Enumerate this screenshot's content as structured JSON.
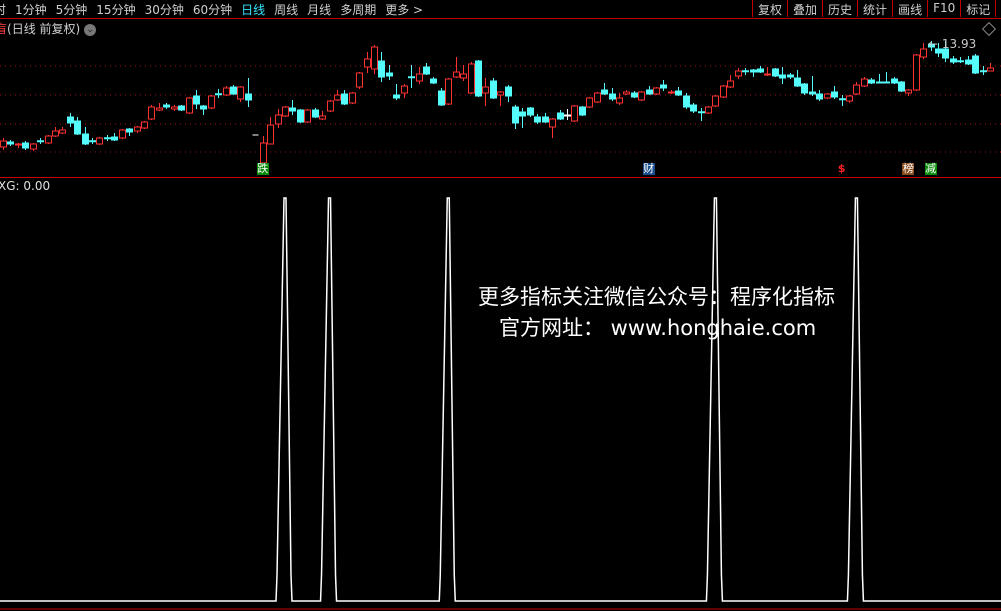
{
  "toolbar": {
    "cut_item": "时",
    "periods": [
      "1分钟",
      "5分钟",
      "15分钟",
      "30分钟",
      "60分钟",
      "日线",
      "周线",
      "月线",
      "多周期",
      "更多 >"
    ],
    "active_period": "日线",
    "right_buttons": [
      "复权",
      "叠加",
      "历史",
      "统计",
      "画线",
      "F10",
      "标记",
      "·"
    ]
  },
  "subtitle": {
    "cut_char": "盲",
    "text": "(日线 前复权)",
    "icon": "chevron-down-circle-icon"
  },
  "main_chart": {
    "high_label": "13.93",
    "high_arrow": "←",
    "markers": [
      {
        "text": "跌",
        "color": "#0a8a0a"
      },
      {
        "text": "财",
        "color": "#1b4d8c"
      },
      {
        "text": "$",
        "color": "#ff2020"
      },
      {
        "text": "榜",
        "color": "#8a4a1a"
      },
      {
        "text": "减",
        "color": "#0a8a0a"
      }
    ]
  },
  "indicator": {
    "label": "XG: 0.00"
  },
  "watermark": {
    "line1": "更多指标关注微信公众号：程序化指标",
    "line2": "官方网址： www.honghaie.com"
  },
  "colors": {
    "up": "#ff3232",
    "down": "#54fcfc",
    "flat": "#ffffff",
    "grid": "#a01010",
    "accent": "#35e6ff",
    "line": "#ffffff"
  },
  "chart_data": [
    {
      "type": "candlestick",
      "fields": [
        "open",
        "close",
        "high",
        "low"
      ],
      "candles": [
        [
          9.69,
          9.93,
          10.05,
          9.57
        ],
        [
          9.89,
          9.81,
          9.97,
          9.73
        ],
        [
          9.77,
          9.81,
          9.85,
          9.65
        ],
        [
          9.85,
          9.65,
          9.93,
          9.57
        ],
        [
          9.61,
          9.81,
          9.85,
          9.53
        ],
        [
          9.94,
          9.93,
          10.05,
          9.81
        ],
        [
          9.85,
          10.13,
          10.17,
          9.81
        ],
        [
          10.13,
          10.33,
          10.49,
          10.09
        ],
        [
          10.25,
          10.37,
          10.49,
          10.21
        ],
        [
          10.89,
          10.65,
          11.05,
          10.49
        ],
        [
          10.73,
          10.21,
          10.89,
          10.17
        ],
        [
          10.21,
          9.81,
          10.49,
          9.77
        ],
        [
          9.94,
          9.93,
          10.05,
          9.81
        ],
        [
          9.81,
          10.05,
          10.09,
          9.77
        ],
        [
          10.06,
          10.05,
          10.17,
          9.93
        ],
        [
          10.09,
          9.97,
          10.25,
          9.93
        ],
        [
          10.05,
          10.37,
          10.41,
          10.01
        ],
        [
          10.41,
          10.29,
          10.45,
          10.13
        ],
        [
          10.33,
          10.49,
          10.53,
          10.25
        ],
        [
          10.45,
          10.69,
          10.73,
          10.41
        ],
        [
          10.81,
          11.29,
          11.37,
          10.77
        ],
        [
          11.17,
          11.25,
          11.45,
          11.13
        ],
        [
          11.37,
          11.29,
          11.45,
          11.21
        ],
        [
          11.21,
          11.29,
          11.37,
          11.13
        ],
        [
          11.33,
          11.17,
          11.37,
          11.13
        ],
        [
          11.05,
          11.65,
          11.69,
          11.01
        ],
        [
          11.73,
          11.41,
          11.97,
          11.21
        ],
        [
          11.33,
          11.21,
          11.37,
          10.97
        ],
        [
          11.25,
          11.73,
          11.77,
          11.21
        ],
        [
          11.82,
          11.81,
          12.01,
          11.65
        ],
        [
          11.77,
          12.05,
          12.13,
          11.73
        ],
        [
          12.09,
          11.81,
          12.17,
          11.77
        ],
        [
          11.61,
          12.09,
          12.13,
          11.49
        ],
        [
          11.81,
          11.57,
          12.45,
          11.29
        ],
        [
          10.17,
          10.17,
          10.17,
          10.17
        ],
        [
          9.05,
          9.85,
          10.13,
          9.05
        ],
        [
          9.81,
          10.57,
          10.89,
          9.81
        ],
        [
          10.61,
          10.97,
          11.21,
          10.45
        ],
        [
          10.93,
          11.29,
          11.33,
          10.89
        ],
        [
          11.25,
          11.13,
          11.57,
          10.97
        ],
        [
          11.17,
          10.69,
          11.21,
          10.65
        ],
        [
          10.69,
          11.17,
          11.21,
          10.65
        ],
        [
          11.17,
          10.89,
          11.25,
          10.85
        ],
        [
          10.81,
          10.93,
          11.13,
          10.77
        ],
        [
          11.13,
          11.53,
          11.57,
          11.09
        ],
        [
          11.57,
          11.77,
          11.97,
          11.53
        ],
        [
          11.81,
          11.41,
          11.97,
          11.37
        ],
        [
          11.45,
          11.85,
          11.89,
          11.41
        ],
        [
          12.09,
          12.65,
          12.69,
          12.01
        ],
        [
          12.89,
          13.21,
          13.49,
          12.65
        ],
        [
          12.81,
          13.69,
          13.77,
          12.61
        ],
        [
          13.13,
          12.49,
          13.49,
          12.29
        ],
        [
          12.65,
          12.53,
          12.97,
          12.37
        ],
        [
          11.77,
          11.65,
          12.21,
          11.57
        ],
        [
          11.85,
          12.13,
          12.21,
          11.65
        ],
        [
          12.5,
          12.49,
          12.97,
          12.05
        ],
        [
          12.33,
          12.61,
          12.89,
          12.21
        ],
        [
          12.89,
          12.61,
          13.05,
          12.57
        ],
        [
          12.41,
          12.25,
          12.49,
          12.21
        ],
        [
          11.93,
          11.37,
          12.05,
          11.33
        ],
        [
          11.41,
          12.41,
          12.45,
          11.37
        ],
        [
          12.49,
          12.69,
          13.29,
          12.45
        ],
        [
          12.45,
          12.61,
          12.97,
          12.33
        ],
        [
          11.85,
          13.01,
          13.09,
          11.81
        ],
        [
          13.13,
          11.73,
          13.17,
          11.69
        ],
        [
          11.85,
          12.09,
          12.45,
          11.33
        ],
        [
          12.33,
          11.65,
          12.45,
          11.61
        ],
        [
          11.77,
          11.89,
          11.93,
          11.33
        ],
        [
          12.09,
          11.73,
          12.17,
          11.49
        ],
        [
          11.29,
          10.65,
          11.37,
          10.41
        ],
        [
          11.09,
          10.93,
          11.25,
          10.45
        ],
        [
          11.25,
          10.97,
          11.29,
          10.89
        ],
        [
          10.89,
          10.69,
          11.01,
          10.61
        ],
        [
          10.89,
          10.69,
          11.05,
          10.65
        ],
        [
          10.49,
          10.81,
          10.85,
          10.05
        ],
        [
          11.05,
          10.81,
          11.17,
          10.77
        ],
        [
          10.97,
          10.97,
          11.21,
          10.77
        ],
        [
          10.73,
          11.33,
          11.37,
          10.69
        ],
        [
          11.29,
          10.97,
          11.33,
          10.93
        ],
        [
          11.29,
          11.65,
          11.69,
          11.25
        ],
        [
          11.49,
          11.85,
          11.89,
          11.45
        ],
        [
          11.97,
          11.81,
          12.25,
          11.77
        ],
        [
          11.81,
          11.61,
          12.05,
          11.53
        ],
        [
          11.45,
          11.65,
          11.85,
          11.37
        ],
        [
          11.81,
          11.89,
          11.97,
          11.77
        ],
        [
          11.85,
          11.69,
          11.93,
          11.65
        ],
        [
          11.57,
          11.89,
          11.93,
          11.53
        ],
        [
          11.97,
          11.81,
          12.13,
          11.77
        ],
        [
          11.81,
          12.05,
          12.09,
          11.77
        ],
        [
          12.17,
          12.05,
          12.37,
          11.93
        ],
        [
          11.88,
          11.89,
          11.97,
          11.81
        ],
        [
          11.93,
          11.77,
          12.09,
          11.73
        ],
        [
          11.73,
          11.29,
          11.85,
          11.21
        ],
        [
          11.37,
          11.13,
          11.45,
          11.05
        ],
        [
          11.1,
          11.09,
          11.25,
          10.73
        ],
        [
          11.05,
          11.29,
          11.33,
          11.01
        ],
        [
          11.33,
          11.73,
          11.77,
          11.29
        ],
        [
          11.69,
          12.13,
          12.17,
          11.65
        ],
        [
          12.09,
          12.33,
          12.57,
          12.05
        ],
        [
          12.53,
          12.73,
          12.85,
          12.41
        ],
        [
          12.74,
          12.73,
          12.85,
          12.57
        ],
        [
          12.77,
          12.69,
          12.81,
          12.49
        ],
        [
          12.81,
          12.69,
          12.93,
          12.65
        ],
        [
          12.6,
          12.61,
          12.89,
          12.53
        ],
        [
          12.81,
          12.53,
          12.85,
          12.49
        ],
        [
          12.57,
          12.45,
          12.89,
          12.21
        ],
        [
          12.57,
          12.49,
          12.65,
          12.41
        ],
        [
          12.45,
          12.13,
          12.77,
          12.09
        ],
        [
          12.21,
          11.85,
          12.25,
          11.77
        ],
        [
          11.89,
          11.81,
          12.53,
          11.73
        ],
        [
          11.81,
          11.61,
          11.97,
          11.53
        ],
        [
          11.65,
          11.81,
          11.85,
          11.61
        ],
        [
          11.89,
          11.69,
          12.13,
          11.61
        ],
        [
          11.62,
          11.61,
          11.77,
          11.33
        ],
        [
          11.53,
          11.73,
          11.77,
          11.45
        ],
        [
          11.81,
          12.17,
          12.29,
          11.77
        ],
        [
          12.13,
          12.41,
          12.49,
          12.09
        ],
        [
          12.37,
          12.25,
          12.45,
          12.21
        ],
        [
          12.29,
          12.28,
          12.61,
          12.28
        ],
        [
          12.29,
          12.28,
          12.69,
          12.28
        ],
        [
          12.41,
          12.25,
          12.49,
          12.21
        ],
        [
          12.29,
          11.93,
          12.33,
          11.89
        ],
        [
          11.85,
          11.97,
          12.01,
          11.73
        ],
        [
          11.97,
          13.37,
          13.41,
          11.93
        ],
        [
          13.29,
          13.61,
          13.85,
          13.21
        ],
        [
          13.81,
          13.69,
          13.93,
          13.53
        ],
        [
          13.61,
          13.45,
          13.85,
          13.29
        ],
        [
          13.61,
          13.25,
          13.93,
          13.09
        ],
        [
          13.21,
          13.09,
          13.33,
          13.01
        ],
        [
          13.14,
          13.13,
          13.29,
          13.05
        ],
        [
          13.17,
          13.01,
          13.33,
          12.97
        ],
        [
          13.33,
          12.65,
          13.41,
          12.61
        ],
        [
          12.74,
          12.73,
          12.93,
          12.57
        ],
        [
          12.73,
          12.85,
          13.05,
          12.81
        ]
      ],
      "marker_candle_index": {
        "跌": 35,
        "财": 87,
        "$": 113,
        "榜": 122,
        "减": 125
      },
      "grid": true
    },
    {
      "type": "line",
      "name": "XG",
      "ylim": [
        0,
        1
      ],
      "signal_indices": [
        38,
        44,
        60,
        96,
        115
      ]
    }
  ]
}
